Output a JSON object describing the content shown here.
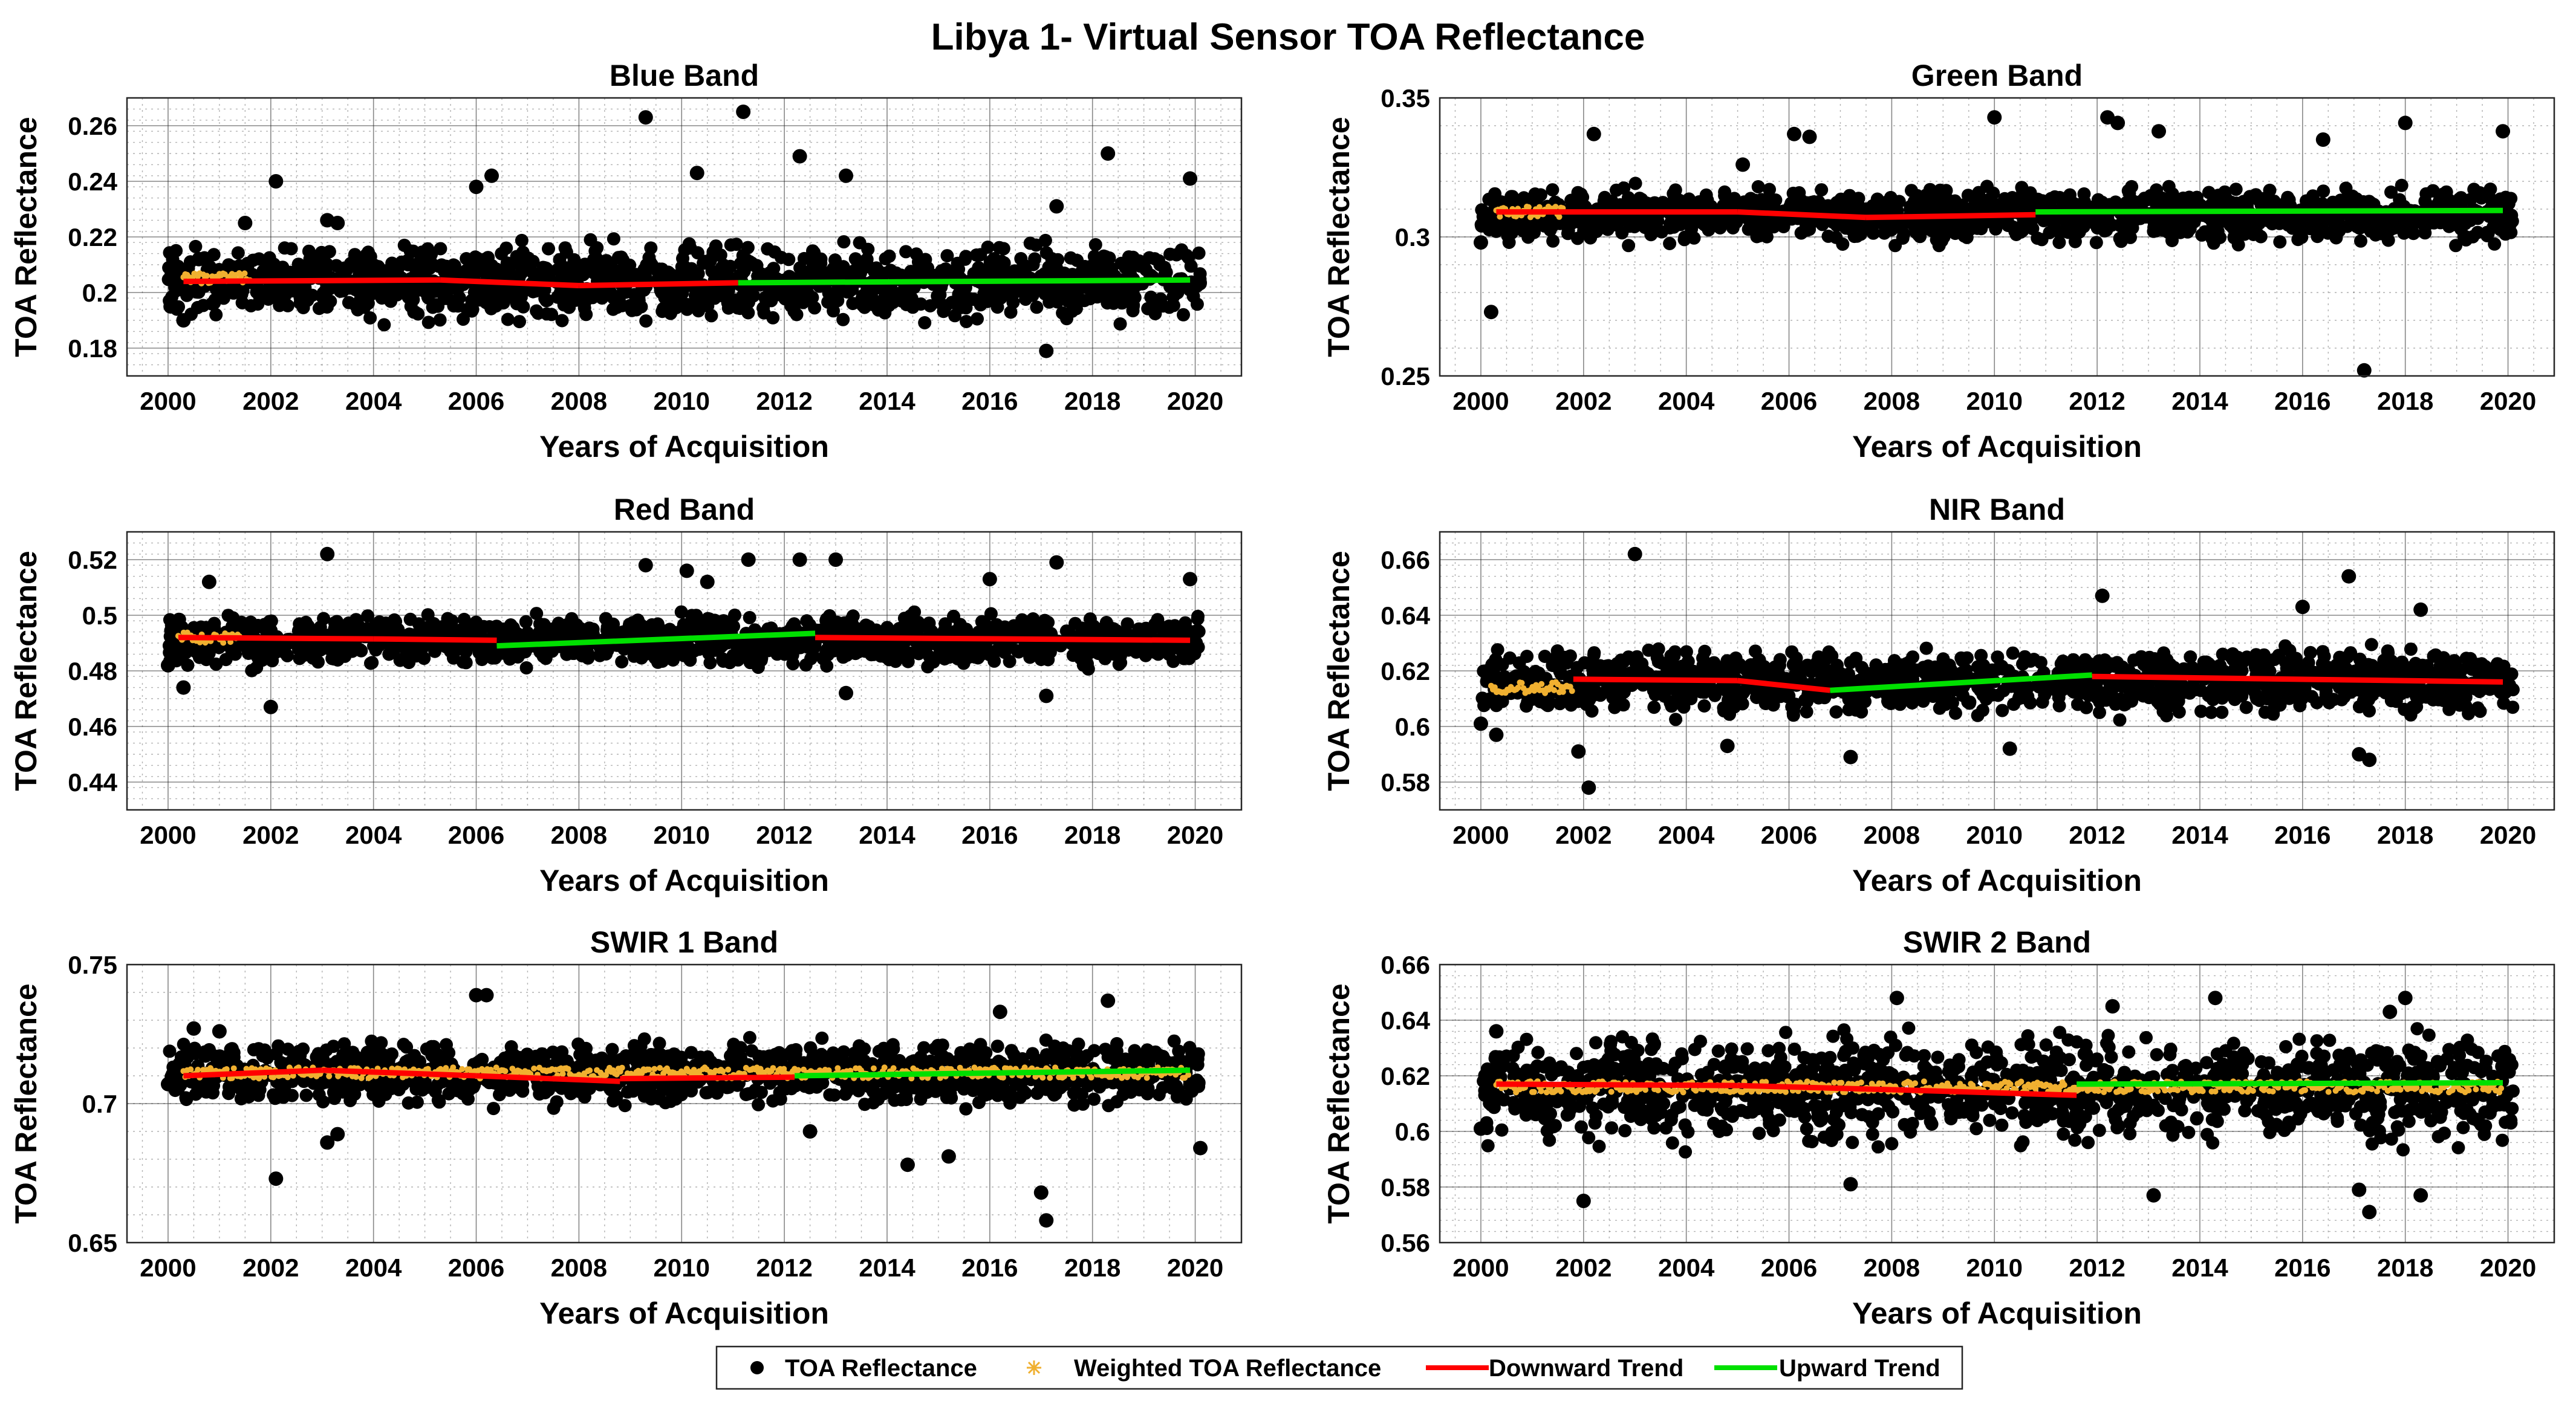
{
  "figure": {
    "title": "Libya 1- Virtual Sensor TOA Reflectance"
  },
  "legend": {
    "items": [
      {
        "label": "TOA Reflectance",
        "marker": "dot",
        "color": "#000000"
      },
      {
        "label": "Weighted TOA Reflectance",
        "marker": "star",
        "color": "#f0b030"
      },
      {
        "label": "Downward Trend",
        "marker": "line",
        "color": "#ff0000"
      },
      {
        "label": "Upward Trend",
        "marker": "line",
        "color": "#00e000"
      }
    ]
  },
  "colors": {
    "points": "#000000",
    "weighted": "#f0b030",
    "down": "#ff0000",
    "up": "#00e000"
  },
  "chart_data": [
    {
      "type": "scatter",
      "title": "Blue Band",
      "xlabel": "Years of Acquisition",
      "ylabel": "TOA Reflectance",
      "xlim": [
        1999.2,
        2020.9
      ],
      "ylim": [
        0.17,
        0.27
      ],
      "xticks": [
        2000,
        2002,
        2004,
        2006,
        2008,
        2010,
        2012,
        2014,
        2016,
        2018,
        2020
      ],
      "yticks": [
        0.18,
        0.2,
        0.22,
        0.24,
        0.26
      ],
      "ytick_labels": [
        "0.18",
        "0.2",
        "0.22",
        "0.24",
        "0.26"
      ],
      "series": [
        {
          "name": "TOA Reflectance",
          "values": [
            [
              2000.05,
              0.195
            ],
            [
              2000.3,
              0.19
            ],
            [
              2000.6,
              0.212
            ],
            [
              2001.5,
              0.225
            ],
            [
              2002.1,
              0.24
            ],
            [
              2003.1,
              0.226
            ],
            [
              2003.3,
              0.225
            ],
            [
              2006.0,
              0.238
            ],
            [
              2006.3,
              0.242
            ],
            [
              2009.3,
              0.263
            ],
            [
              2010.3,
              0.243
            ],
            [
              2011.2,
              0.265
            ],
            [
              2012.3,
              0.249
            ],
            [
              2013.2,
              0.242
            ],
            [
              2017.1,
              0.179
            ],
            [
              2017.3,
              0.231
            ],
            [
              2018.3,
              0.25
            ],
            [
              2019.9,
              0.241
            ]
          ],
          "spread": [
            0.19,
            0.222
          ],
          "center": 0.204
        },
        {
          "name": "Weighted TOA Reflectance",
          "x": [
            2000.3,
            2001.6
          ],
          "center": 0.205
        },
        {
          "name": "Downward Trend",
          "segments": [
            [
              2000.3,
              0.204,
              2005.3,
              0.2045
            ],
            [
              2005.3,
              0.2045,
              2008.0,
              0.2025
            ],
            [
              2008.0,
              0.2025,
              2011.1,
              0.2035
            ]
          ]
        },
        {
          "name": "Upward Trend",
          "segments": [
            [
              2011.1,
              0.2035,
              2019.9,
              0.2045
            ]
          ]
        }
      ]
    },
    {
      "type": "scatter",
      "title": "Green Band",
      "xlabel": "Years of Acquisition",
      "ylabel": "TOA Reflectance",
      "xlim": [
        1999.2,
        2020.9
      ],
      "ylim": [
        0.25,
        0.35
      ],
      "xticks": [
        2000,
        2002,
        2004,
        2006,
        2008,
        2010,
        2012,
        2014,
        2016,
        2018,
        2020
      ],
      "yticks": [
        0.25,
        0.3,
        0.35
      ],
      "ytick_labels": [
        "0.25",
        "0.3",
        "0.35"
      ],
      "series": [
        {
          "name": "TOA Reflectance",
          "values": [
            [
              2000.0,
              0.298
            ],
            [
              2000.2,
              0.273
            ],
            [
              2002.2,
              0.337
            ],
            [
              2005.1,
              0.326
            ],
            [
              2006.1,
              0.337
            ],
            [
              2006.4,
              0.336
            ],
            [
              2010.0,
              0.343
            ],
            [
              2012.2,
              0.343
            ],
            [
              2012.4,
              0.341
            ],
            [
              2013.2,
              0.338
            ],
            [
              2016.4,
              0.335
            ],
            [
              2017.2,
              0.252
            ],
            [
              2018.0,
              0.341
            ],
            [
              2019.9,
              0.338
            ]
          ],
          "spread": [
            0.298,
            0.32
          ],
          "center": 0.308
        },
        {
          "name": "Weighted TOA Reflectance",
          "x": [
            2000.3,
            2001.6
          ],
          "center": 0.309
        },
        {
          "name": "Downward Trend",
          "segments": [
            [
              2000.3,
              0.309,
              2005.0,
              0.309
            ],
            [
              2005.0,
              0.309,
              2007.5,
              0.307
            ],
            [
              2007.5,
              0.307,
              2010.8,
              0.308
            ]
          ]
        },
        {
          "name": "Upward Trend",
          "segments": [
            [
              2010.8,
              0.309,
              2019.9,
              0.3095
            ]
          ]
        }
      ]
    },
    {
      "type": "scatter",
      "title": "Red Band",
      "xlabel": "Years of Acquisition",
      "ylabel": "TOA Reflectance",
      "xlim": [
        1999.2,
        2020.9
      ],
      "ylim": [
        0.43,
        0.53
      ],
      "xticks": [
        2000,
        2002,
        2004,
        2006,
        2008,
        2010,
        2012,
        2014,
        2016,
        2018,
        2020
      ],
      "yticks": [
        0.44,
        0.46,
        0.48,
        0.5,
        0.52
      ],
      "ytick_labels": [
        "0.44",
        "0.46",
        "0.48",
        "0.5",
        "0.52"
      ],
      "series": [
        {
          "name": "TOA Reflectance",
          "values": [
            [
              2000.0,
              0.482
            ],
            [
              2000.3,
              0.474
            ],
            [
              2000.8,
              0.512
            ],
            [
              2002.0,
              0.467
            ],
            [
              2003.1,
              0.522
            ],
            [
              2009.3,
              0.518
            ],
            [
              2010.1,
              0.516
            ],
            [
              2010.5,
              0.512
            ],
            [
              2011.3,
              0.52
            ],
            [
              2012.3,
              0.52
            ],
            [
              2013.0,
              0.52
            ],
            [
              2013.2,
              0.472
            ],
            [
              2016.0,
              0.513
            ],
            [
              2017.1,
              0.471
            ],
            [
              2017.3,
              0.519
            ],
            [
              2019.9,
              0.513
            ]
          ],
          "spread": [
            0.481,
            0.502
          ],
          "center": 0.491
        },
        {
          "name": "Weighted TOA Reflectance",
          "x": [
            2000.2,
            2001.4
          ],
          "center": 0.492
        },
        {
          "name": "Downward Trend",
          "segments": [
            [
              2000.2,
              0.492,
              2004.0,
              0.4915
            ],
            [
              2004.0,
              0.4915,
              2006.4,
              0.491
            ],
            [
              2012.6,
              0.492,
              2019.9,
              0.491
            ]
          ]
        },
        {
          "name": "Upward Trend",
          "segments": [
            [
              2006.4,
              0.489,
              2012.6,
              0.4935
            ]
          ]
        }
      ]
    },
    {
      "type": "scatter",
      "title": "NIR Band",
      "xlabel": "Years of Acquisition",
      "ylabel": "TOA Reflectance",
      "xlim": [
        1999.2,
        2020.9
      ],
      "ylim": [
        0.57,
        0.67
      ],
      "xticks": [
        2000,
        2002,
        2004,
        2006,
        2008,
        2010,
        2012,
        2014,
        2016,
        2018,
        2020
      ],
      "yticks": [
        0.58,
        0.6,
        0.62,
        0.64,
        0.66
      ],
      "ytick_labels": [
        "0.58",
        "0.6",
        "0.62",
        "0.64",
        "0.66"
      ],
      "series": [
        {
          "name": "TOA Reflectance",
          "values": [
            [
              2000.0,
              0.601
            ],
            [
              2000.3,
              0.597
            ],
            [
              2001.9,
              0.591
            ],
            [
              2002.1,
              0.578
            ],
            [
              2003.0,
              0.662
            ],
            [
              2004.8,
              0.593
            ],
            [
              2007.2,
              0.589
            ],
            [
              2010.3,
              0.592
            ],
            [
              2012.1,
              0.647
            ],
            [
              2016.0,
              0.643
            ],
            [
              2016.9,
              0.654
            ],
            [
              2017.1,
              0.59
            ],
            [
              2017.3,
              0.588
            ],
            [
              2018.3,
              0.642
            ]
          ],
          "spread": [
            0.603,
            0.63
          ],
          "center": 0.616
        },
        {
          "name": "Weighted TOA Reflectance",
          "x": [
            2000.2,
            2001.8
          ],
          "center": 0.614
        },
        {
          "name": "Downward Trend",
          "segments": [
            [
              2001.8,
              0.617,
              2005.0,
              0.6165
            ],
            [
              2005.0,
              0.6165,
              2006.8,
              0.613
            ],
            [
              2011.9,
              0.618,
              2019.9,
              0.616
            ]
          ]
        },
        {
          "name": "Upward Trend",
          "segments": [
            [
              2006.8,
              0.613,
              2011.9,
              0.6185
            ]
          ]
        }
      ]
    },
    {
      "type": "scatter",
      "title": "SWIR 1 Band",
      "xlabel": "Years of Acquisition",
      "ylabel": "TOA Reflectance",
      "xlim": [
        1999.2,
        2020.9
      ],
      "ylim": [
        0.65,
        0.75
      ],
      "xticks": [
        2000,
        2002,
        2004,
        2006,
        2008,
        2010,
        2012,
        2014,
        2016,
        2018,
        2020
      ],
      "yticks": [
        0.65,
        0.7,
        0.75
      ],
      "ytick_labels": [
        "0.65",
        "0.7",
        "0.75"
      ],
      "series": [
        {
          "name": "TOA Reflectance",
          "values": [
            [
              2000.0,
              0.707
            ],
            [
              2000.5,
              0.727
            ],
            [
              2001.0,
              0.726
            ],
            [
              2002.1,
              0.673
            ],
            [
              2003.1,
              0.686
            ],
            [
              2003.3,
              0.689
            ],
            [
              2006.0,
              0.739
            ],
            [
              2006.2,
              0.739
            ],
            [
              2012.5,
              0.69
            ],
            [
              2014.4,
              0.678
            ],
            [
              2015.2,
              0.681
            ],
            [
              2016.2,
              0.733
            ],
            [
              2017.0,
              0.668
            ],
            [
              2017.1,
              0.658
            ],
            [
              2018.3,
              0.737
            ],
            [
              2020.1,
              0.684
            ]
          ],
          "spread": [
            0.698,
            0.724
          ],
          "center": 0.711
        },
        {
          "name": "Weighted TOA Reflectance",
          "x": [
            2000.3,
            2019.9
          ],
          "center": 0.711
        },
        {
          "name": "Downward Trend",
          "segments": [
            [
              2000.3,
              0.71,
              2003.0,
              0.712
            ],
            [
              2003.0,
              0.712,
              2006.0,
              0.71
            ],
            [
              2006.0,
              0.71,
              2008.8,
              0.708
            ],
            [
              2008.8,
              0.709,
              2012.2,
              0.7095
            ]
          ]
        },
        {
          "name": "Upward Trend",
          "segments": [
            [
              2012.2,
              0.71,
              2019.9,
              0.712
            ]
          ]
        }
      ]
    },
    {
      "type": "scatter",
      "title": "SWIR 2 Band",
      "xlabel": "Years of Acquisition",
      "ylabel": "TOA Reflectance",
      "xlim": [
        1999.2,
        2020.9
      ],
      "ylim": [
        0.56,
        0.66
      ],
      "xticks": [
        2000,
        2002,
        2004,
        2006,
        2008,
        2010,
        2012,
        2014,
        2016,
        2018,
        2020
      ],
      "yticks": [
        0.56,
        0.58,
        0.6,
        0.62,
        0.64,
        0.66
      ],
      "ytick_labels": [
        "0.56",
        "0.58",
        "0.6",
        "0.62",
        "0.64",
        "0.66"
      ],
      "series": [
        {
          "name": "TOA Reflectance",
          "values": [
            [
              2000.0,
              0.601
            ],
            [
              2000.3,
              0.636
            ],
            [
              2002.0,
              0.575
            ],
            [
              2007.2,
              0.581
            ],
            [
              2008.1,
              0.648
            ],
            [
              2012.3,
              0.645
            ],
            [
              2013.1,
              0.577
            ],
            [
              2014.3,
              0.648
            ],
            [
              2017.1,
              0.579
            ],
            [
              2017.3,
              0.571
            ],
            [
              2017.7,
              0.643
            ],
            [
              2018.0,
              0.648
            ],
            [
              2018.3,
              0.577
            ]
          ],
          "spread": [
            0.592,
            0.637
          ],
          "center": 0.615
        },
        {
          "name": "Weighted TOA Reflectance",
          "x": [
            2000.3,
            2019.9
          ],
          "center": 0.616
        },
        {
          "name": "Downward Trend",
          "segments": [
            [
              2000.3,
              0.617,
              2005.0,
              0.6165
            ],
            [
              2005.0,
              0.6165,
              2008.0,
              0.615
            ],
            [
              2008.0,
              0.615,
              2011.6,
              0.613
            ]
          ]
        },
        {
          "name": "Upward Trend",
          "segments": [
            [
              2011.6,
              0.617,
              2019.9,
              0.6175
            ]
          ]
        }
      ]
    }
  ]
}
